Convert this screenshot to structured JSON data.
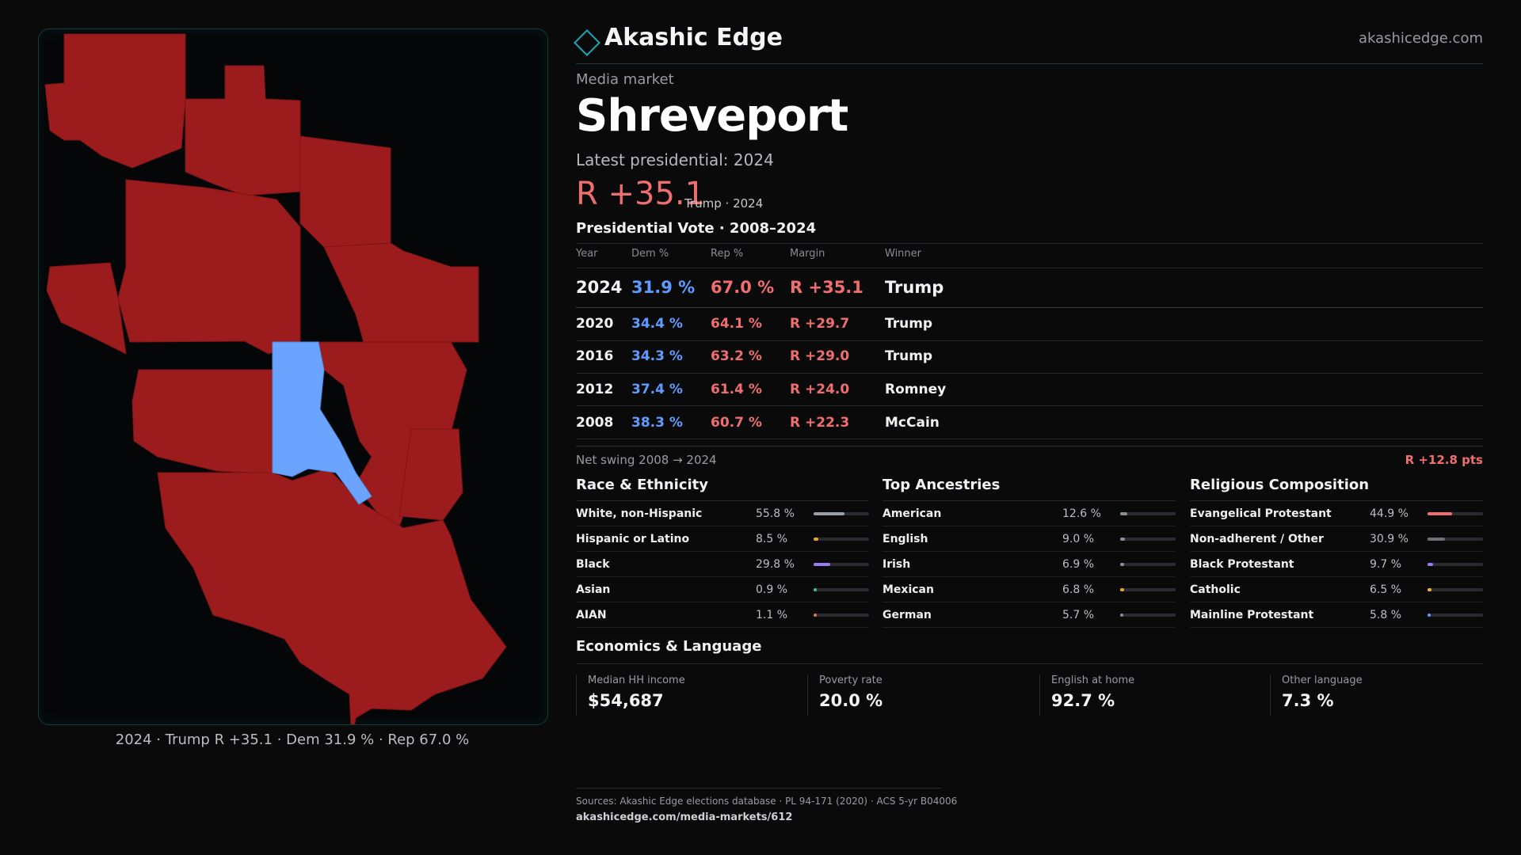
{
  "brand": {
    "name": "Akashic Edge",
    "url": "akashicedge.com"
  },
  "header": {
    "kicker": "Media market",
    "market_name": "Shreveport",
    "latest_label": "Latest presidential: 2024",
    "margin_big": "R +35.1",
    "margin_sub": "Trump · 2024"
  },
  "colors": {
    "rep": "#9c1c1e",
    "dem": "#6aa4ff",
    "accent": "#1aa5b5",
    "rep_text": "#ef6f6f",
    "dem_text": "#5f9cff"
  },
  "map": {
    "caption": "2024 · Trump R +35.1 · Dem 31.9 % · Rep 67.0 %"
  },
  "votes": {
    "title": "Presidential Vote · 2008–2024",
    "headers": {
      "year": "Year",
      "dem": "Dem %",
      "rep": "Rep %",
      "margin": "Margin",
      "winner": "Winner"
    },
    "rows": [
      {
        "year": "2024",
        "dem": "31.9 %",
        "rep": "67.0 %",
        "margin": "R +35.1",
        "winner": "Trump"
      },
      {
        "year": "2020",
        "dem": "34.4 %",
        "rep": "64.1 %",
        "margin": "R +29.7",
        "winner": "Trump"
      },
      {
        "year": "2016",
        "dem": "34.3 %",
        "rep": "63.2 %",
        "margin": "R +29.0",
        "winner": "Trump"
      },
      {
        "year": "2012",
        "dem": "37.4 %",
        "rep": "61.4 %",
        "margin": "R +24.0",
        "winner": "Romney"
      },
      {
        "year": "2008",
        "dem": "38.3 %",
        "rep": "60.7 %",
        "margin": "R +22.3",
        "winner": "McCain"
      }
    ],
    "swing_label": "Net swing 2008 → 2024",
    "swing_value": "R +12.8 pts"
  },
  "race": {
    "title": "Race & Ethnicity",
    "rows": [
      {
        "label": "White, non-Hispanic",
        "value": "55.8 %",
        "pct": 55.8,
        "color": "#9aa0aa"
      },
      {
        "label": "Hispanic or Latino",
        "value": "8.5 %",
        "pct": 8.5,
        "color": "#f0a32a"
      },
      {
        "label": "Black",
        "value": "29.8 %",
        "pct": 29.8,
        "color": "#9b7cf0"
      },
      {
        "label": "Asian",
        "value": "0.9 %",
        "pct": 0.9,
        "color": "#38c3a5"
      },
      {
        "label": "AIAN",
        "value": "1.1 %",
        "pct": 1.1,
        "color": "#e07a3a"
      }
    ]
  },
  "ancestry": {
    "title": "Top Ancestries",
    "rows": [
      {
        "label": "American",
        "value": "12.6 %",
        "pct": 12.6,
        "color": "#8a8f98"
      },
      {
        "label": "English",
        "value": "9.0 %",
        "pct": 9.0,
        "color": "#8a8f98"
      },
      {
        "label": "Irish",
        "value": "6.9 %",
        "pct": 6.9,
        "color": "#8a8f98"
      },
      {
        "label": "Mexican",
        "value": "6.8 %",
        "pct": 6.8,
        "color": "#f0a32a"
      },
      {
        "label": "German",
        "value": "5.7 %",
        "pct": 5.7,
        "color": "#8a8f98"
      }
    ]
  },
  "religion": {
    "title": "Religious Composition",
    "rows": [
      {
        "label": "Evangelical Protestant",
        "value": "44.9 %",
        "pct": 44.9,
        "color": "#ef6f6f"
      },
      {
        "label": "Non-adherent / Other",
        "value": "30.9 %",
        "pct": 30.9,
        "color": "#6d7078"
      },
      {
        "label": "Black Protestant",
        "value": "9.7 %",
        "pct": 9.7,
        "color": "#9b7cf0"
      },
      {
        "label": "Catholic",
        "value": "6.5 %",
        "pct": 6.5,
        "color": "#f0b030"
      },
      {
        "label": "Mainline Protestant",
        "value": "5.8 %",
        "pct": 5.8,
        "color": "#5f9cff"
      }
    ]
  },
  "economics": {
    "title": "Economics & Language",
    "items": [
      {
        "label": "Median HH income",
        "value": "$54,687"
      },
      {
        "label": "Poverty rate",
        "value": "20.0 %"
      },
      {
        "label": "English at home",
        "value": "92.7 %"
      },
      {
        "label": "Other language",
        "value": "7.3 %"
      }
    ]
  },
  "sources": {
    "text": "Sources: Akashic Edge elections database · PL 94-171 (2020) · ACS 5-yr B04006",
    "url": "akashicedge.com/media-markets/612"
  }
}
